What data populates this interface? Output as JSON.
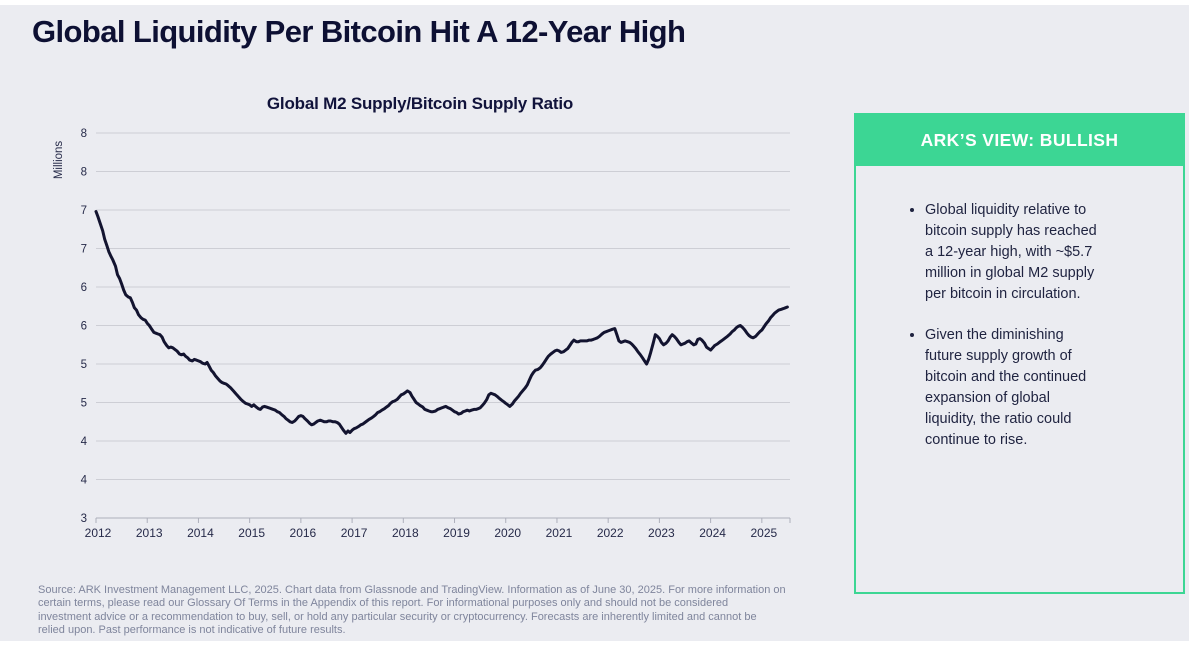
{
  "page": {
    "title": "Global Liquidity Per Bitcoin Hit A 12-Year High",
    "background_color": "#EBECF1",
    "accent_green": "#3CD694",
    "navy": "#0D1033"
  },
  "ark_view": {
    "header": "ARK’S VIEW: BULLISH",
    "bullets": [
      "Global liquidity relative to\nbitcoin supply has reached\na 12-year high, with ~$5.7\nmillion in global M2 supply\nper bitcoin in circulation.",
      "Given the diminishing\nfuture supply growth of\nbitcoin and the continued\nexpansion of global\nliquidity, the ratio could\ncontinue to rise."
    ]
  },
  "footer": {
    "lines": [
      "Source: ARK Investment Management LLC, 2025. Chart data from Glassnode and TradingView. Information as of June 30, 2025. For more information on",
      "certain terms, please read our Glossary Of Terms in the Appendix of this report. For informational purposes only and should not be considered",
      "investment advice or a recommendation to buy, sell, or hold any particular security or cryptocurrency. Forecasts are inherently limited and cannot be",
      "relied upon. Past performance is not indicative of future results."
    ]
  },
  "chart_data": {
    "type": "line",
    "title": "Global M2 Supply/Bitcoin Supply Ratio",
    "xlabel": "",
    "ylabel": "Millions",
    "grid": true,
    "legend_position": "none",
    "line_color": "#131430",
    "grid_color": "#CDCED5",
    "axis_color": "#ADAFBB",
    "tick_label_color": "#262A49",
    "ylim": [
      3,
      8
    ],
    "xlim": [
      2012,
      2025.55
    ],
    "y_tick_values": [
      8,
      7.5,
      7,
      6.5,
      6,
      5.5,
      5,
      4.5,
      4,
      3.5,
      3
    ],
    "y_tick_labels": [
      "8",
      "8",
      "7",
      "7",
      "6",
      "6",
      "5",
      "5",
      "4",
      "4",
      "3"
    ],
    "x_tick_values": [
      2012,
      2013,
      2014,
      2015,
      2016,
      2017,
      2018,
      2019,
      2020,
      2021,
      2022,
      2023,
      2024,
      2025
    ],
    "x_tick_labels": [
      "2012",
      "2013",
      "2014",
      "2015",
      "2016",
      "2017",
      "2018",
      "2019",
      "2020",
      "2021",
      "2022",
      "2023",
      "2024",
      "2025"
    ],
    "points": [
      [
        2012.0,
        6.98
      ],
      [
        2012.04,
        6.91
      ],
      [
        2012.08,
        6.83
      ],
      [
        2012.13,
        6.73
      ],
      [
        2012.17,
        6.62
      ],
      [
        2012.21,
        6.54
      ],
      [
        2012.25,
        6.46
      ],
      [
        2012.29,
        6.4
      ],
      [
        2012.33,
        6.35
      ],
      [
        2012.38,
        6.27
      ],
      [
        2012.42,
        6.16
      ],
      [
        2012.46,
        6.11
      ],
      [
        2012.5,
        6.04
      ],
      [
        2012.54,
        5.96
      ],
      [
        2012.58,
        5.9
      ],
      [
        2012.63,
        5.87
      ],
      [
        2012.67,
        5.86
      ],
      [
        2012.71,
        5.8
      ],
      [
        2012.75,
        5.73
      ],
      [
        2012.79,
        5.7
      ],
      [
        2012.83,
        5.64
      ],
      [
        2012.88,
        5.6
      ],
      [
        2012.92,
        5.58
      ],
      [
        2012.96,
        5.57
      ],
      [
        2013.0,
        5.53
      ],
      [
        2013.04,
        5.5
      ],
      [
        2013.08,
        5.46
      ],
      [
        2013.13,
        5.41
      ],
      [
        2013.17,
        5.4
      ],
      [
        2013.21,
        5.39
      ],
      [
        2013.25,
        5.38
      ],
      [
        2013.29,
        5.35
      ],
      [
        2013.33,
        5.29
      ],
      [
        2013.38,
        5.24
      ],
      [
        2013.42,
        5.21
      ],
      [
        2013.46,
        5.22
      ],
      [
        2013.5,
        5.21
      ],
      [
        2013.54,
        5.19
      ],
      [
        2013.58,
        5.17
      ],
      [
        2013.63,
        5.13
      ],
      [
        2013.67,
        5.12
      ],
      [
        2013.71,
        5.13
      ],
      [
        2013.75,
        5.1
      ],
      [
        2013.79,
        5.08
      ],
      [
        2013.83,
        5.05
      ],
      [
        2013.88,
        5.04
      ],
      [
        2013.92,
        5.06
      ],
      [
        2013.96,
        5.05
      ],
      [
        2014.0,
        5.04
      ],
      [
        2014.04,
        5.03
      ],
      [
        2014.08,
        5.01
      ],
      [
        2014.13,
        5.0
      ],
      [
        2014.17,
        5.02
      ],
      [
        2014.21,
        4.97
      ],
      [
        2014.25,
        4.92
      ],
      [
        2014.29,
        4.89
      ],
      [
        2014.33,
        4.85
      ],
      [
        2014.38,
        4.81
      ],
      [
        2014.42,
        4.78
      ],
      [
        2014.46,
        4.76
      ],
      [
        2014.5,
        4.75
      ],
      [
        2014.54,
        4.74
      ],
      [
        2014.58,
        4.72
      ],
      [
        2014.63,
        4.69
      ],
      [
        2014.67,
        4.66
      ],
      [
        2014.71,
        4.63
      ],
      [
        2014.75,
        4.6
      ],
      [
        2014.79,
        4.57
      ],
      [
        2014.83,
        4.54
      ],
      [
        2014.88,
        4.51
      ],
      [
        2014.92,
        4.49
      ],
      [
        2014.96,
        4.48
      ],
      [
        2015.0,
        4.47
      ],
      [
        2015.04,
        4.45
      ],
      [
        2015.08,
        4.47
      ],
      [
        2015.13,
        4.44
      ],
      [
        2015.17,
        4.42
      ],
      [
        2015.21,
        4.41
      ],
      [
        2015.25,
        4.44
      ],
      [
        2015.29,
        4.45
      ],
      [
        2015.33,
        4.44
      ],
      [
        2015.38,
        4.43
      ],
      [
        2015.42,
        4.42
      ],
      [
        2015.46,
        4.41
      ],
      [
        2015.5,
        4.4
      ],
      [
        2015.54,
        4.38
      ],
      [
        2015.58,
        4.37
      ],
      [
        2015.63,
        4.34
      ],
      [
        2015.67,
        4.32
      ],
      [
        2015.71,
        4.29
      ],
      [
        2015.75,
        4.27
      ],
      [
        2015.79,
        4.25
      ],
      [
        2015.83,
        4.24
      ],
      [
        2015.88,
        4.26
      ],
      [
        2015.92,
        4.29
      ],
      [
        2015.96,
        4.32
      ],
      [
        2016.0,
        4.33
      ],
      [
        2016.04,
        4.32
      ],
      [
        2016.08,
        4.29
      ],
      [
        2016.13,
        4.26
      ],
      [
        2016.17,
        4.23
      ],
      [
        2016.21,
        4.21
      ],
      [
        2016.25,
        4.22
      ],
      [
        2016.29,
        4.24
      ],
      [
        2016.33,
        4.26
      ],
      [
        2016.38,
        4.27
      ],
      [
        2016.42,
        4.26
      ],
      [
        2016.46,
        4.25
      ],
      [
        2016.5,
        4.25
      ],
      [
        2016.54,
        4.26
      ],
      [
        2016.58,
        4.26
      ],
      [
        2016.63,
        4.25
      ],
      [
        2016.67,
        4.25
      ],
      [
        2016.71,
        4.24
      ],
      [
        2016.75,
        4.22
      ],
      [
        2016.79,
        4.18
      ],
      [
        2016.83,
        4.14
      ],
      [
        2016.88,
        4.1
      ],
      [
        2016.92,
        4.13
      ],
      [
        2016.96,
        4.11
      ],
      [
        2017.0,
        4.14
      ],
      [
        2017.04,
        4.16
      ],
      [
        2017.08,
        4.17
      ],
      [
        2017.13,
        4.19
      ],
      [
        2017.17,
        4.21
      ],
      [
        2017.21,
        4.22
      ],
      [
        2017.25,
        4.24
      ],
      [
        2017.29,
        4.26
      ],
      [
        2017.33,
        4.28
      ],
      [
        2017.38,
        4.3
      ],
      [
        2017.42,
        4.32
      ],
      [
        2017.46,
        4.34
      ],
      [
        2017.5,
        4.37
      ],
      [
        2017.54,
        4.38
      ],
      [
        2017.58,
        4.4
      ],
      [
        2017.63,
        4.42
      ],
      [
        2017.67,
        4.44
      ],
      [
        2017.71,
        4.46
      ],
      [
        2017.75,
        4.49
      ],
      [
        2017.79,
        4.51
      ],
      [
        2017.83,
        4.52
      ],
      [
        2017.88,
        4.54
      ],
      [
        2017.92,
        4.57
      ],
      [
        2017.96,
        4.6
      ],
      [
        2018.0,
        4.61
      ],
      [
        2018.04,
        4.63
      ],
      [
        2018.08,
        4.65
      ],
      [
        2018.13,
        4.63
      ],
      [
        2018.17,
        4.58
      ],
      [
        2018.21,
        4.54
      ],
      [
        2018.25,
        4.5
      ],
      [
        2018.29,
        4.48
      ],
      [
        2018.33,
        4.46
      ],
      [
        2018.38,
        4.44
      ],
      [
        2018.42,
        4.41
      ],
      [
        2018.46,
        4.4
      ],
      [
        2018.5,
        4.39
      ],
      [
        2018.54,
        4.38
      ],
      [
        2018.58,
        4.38
      ],
      [
        2018.63,
        4.39
      ],
      [
        2018.67,
        4.41
      ],
      [
        2018.71,
        4.42
      ],
      [
        2018.75,
        4.43
      ],
      [
        2018.79,
        4.44
      ],
      [
        2018.83,
        4.45
      ],
      [
        2018.88,
        4.43
      ],
      [
        2018.92,
        4.42
      ],
      [
        2018.96,
        4.4
      ],
      [
        2019.0,
        4.38
      ],
      [
        2019.04,
        4.37
      ],
      [
        2019.08,
        4.35
      ],
      [
        2019.13,
        4.36
      ],
      [
        2019.17,
        4.38
      ],
      [
        2019.21,
        4.39
      ],
      [
        2019.25,
        4.4
      ],
      [
        2019.29,
        4.39
      ],
      [
        2019.33,
        4.4
      ],
      [
        2019.38,
        4.41
      ],
      [
        2019.42,
        4.41
      ],
      [
        2019.46,
        4.42
      ],
      [
        2019.5,
        4.43
      ],
      [
        2019.54,
        4.46
      ],
      [
        2019.58,
        4.49
      ],
      [
        2019.63,
        4.54
      ],
      [
        2019.67,
        4.6
      ],
      [
        2019.71,
        4.62
      ],
      [
        2019.75,
        4.61
      ],
      [
        2019.79,
        4.6
      ],
      [
        2019.83,
        4.58
      ],
      [
        2019.88,
        4.55
      ],
      [
        2019.92,
        4.53
      ],
      [
        2019.96,
        4.51
      ],
      [
        2020.0,
        4.49
      ],
      [
        2020.04,
        4.47
      ],
      [
        2020.08,
        4.45
      ],
      [
        2020.13,
        4.48
      ],
      [
        2020.17,
        4.52
      ],
      [
        2020.21,
        4.55
      ],
      [
        2020.25,
        4.58
      ],
      [
        2020.29,
        4.62
      ],
      [
        2020.33,
        4.65
      ],
      [
        2020.38,
        4.69
      ],
      [
        2020.42,
        4.73
      ],
      [
        2020.46,
        4.79
      ],
      [
        2020.5,
        4.85
      ],
      [
        2020.54,
        4.89
      ],
      [
        2020.58,
        4.92
      ],
      [
        2020.63,
        4.93
      ],
      [
        2020.67,
        4.95
      ],
      [
        2020.71,
        4.98
      ],
      [
        2020.75,
        5.02
      ],
      [
        2020.79,
        5.06
      ],
      [
        2020.83,
        5.1
      ],
      [
        2020.88,
        5.13
      ],
      [
        2020.92,
        5.15
      ],
      [
        2020.96,
        5.17
      ],
      [
        2021.0,
        5.18
      ],
      [
        2021.04,
        5.17
      ],
      [
        2021.08,
        5.15
      ],
      [
        2021.13,
        5.16
      ],
      [
        2021.17,
        5.18
      ],
      [
        2021.21,
        5.2
      ],
      [
        2021.25,
        5.24
      ],
      [
        2021.29,
        5.28
      ],
      [
        2021.33,
        5.31
      ],
      [
        2021.38,
        5.29
      ],
      [
        2021.42,
        5.29
      ],
      [
        2021.46,
        5.3
      ],
      [
        2021.5,
        5.3
      ],
      [
        2021.54,
        5.3
      ],
      [
        2021.58,
        5.3
      ],
      [
        2021.63,
        5.31
      ],
      [
        2021.67,
        5.31
      ],
      [
        2021.71,
        5.32
      ],
      [
        2021.75,
        5.33
      ],
      [
        2021.79,
        5.34
      ],
      [
        2021.83,
        5.36
      ],
      [
        2021.88,
        5.39
      ],
      [
        2021.92,
        5.41
      ],
      [
        2021.96,
        5.42
      ],
      [
        2022.0,
        5.43
      ],
      [
        2022.04,
        5.44
      ],
      [
        2022.08,
        5.45
      ],
      [
        2022.13,
        5.46
      ],
      [
        2022.17,
        5.38
      ],
      [
        2022.21,
        5.3
      ],
      [
        2022.25,
        5.28
      ],
      [
        2022.29,
        5.29
      ],
      [
        2022.33,
        5.3
      ],
      [
        2022.38,
        5.29
      ],
      [
        2022.42,
        5.28
      ],
      [
        2022.46,
        5.26
      ],
      [
        2022.5,
        5.23
      ],
      [
        2022.54,
        5.2
      ],
      [
        2022.58,
        5.16
      ],
      [
        2022.63,
        5.12
      ],
      [
        2022.67,
        5.08
      ],
      [
        2022.71,
        5.04
      ],
      [
        2022.75,
        5.0
      ],
      [
        2022.79,
        5.06
      ],
      [
        2022.83,
        5.15
      ],
      [
        2022.88,
        5.27
      ],
      [
        2022.92,
        5.38
      ],
      [
        2022.96,
        5.36
      ],
      [
        2023.0,
        5.33
      ],
      [
        2023.04,
        5.28
      ],
      [
        2023.08,
        5.25
      ],
      [
        2023.13,
        5.27
      ],
      [
        2023.17,
        5.3
      ],
      [
        2023.21,
        5.35
      ],
      [
        2023.25,
        5.38
      ],
      [
        2023.29,
        5.36
      ],
      [
        2023.33,
        5.33
      ],
      [
        2023.38,
        5.28
      ],
      [
        2023.42,
        5.25
      ],
      [
        2023.46,
        5.26
      ],
      [
        2023.5,
        5.27
      ],
      [
        2023.54,
        5.29
      ],
      [
        2023.58,
        5.3
      ],
      [
        2023.63,
        5.27
      ],
      [
        2023.67,
        5.25
      ],
      [
        2023.71,
        5.26
      ],
      [
        2023.75,
        5.32
      ],
      [
        2023.79,
        5.33
      ],
      [
        2023.83,
        5.31
      ],
      [
        2023.88,
        5.27
      ],
      [
        2023.92,
        5.22
      ],
      [
        2023.96,
        5.2
      ],
      [
        2024.0,
        5.18
      ],
      [
        2024.04,
        5.21
      ],
      [
        2024.08,
        5.24
      ],
      [
        2024.13,
        5.26
      ],
      [
        2024.17,
        5.28
      ],
      [
        2024.21,
        5.3
      ],
      [
        2024.25,
        5.32
      ],
      [
        2024.29,
        5.34
      ],
      [
        2024.33,
        5.36
      ],
      [
        2024.38,
        5.39
      ],
      [
        2024.42,
        5.42
      ],
      [
        2024.46,
        5.44
      ],
      [
        2024.5,
        5.47
      ],
      [
        2024.54,
        5.49
      ],
      [
        2024.58,
        5.5
      ],
      [
        2024.63,
        5.47
      ],
      [
        2024.67,
        5.44
      ],
      [
        2024.71,
        5.4
      ],
      [
        2024.75,
        5.37
      ],
      [
        2024.79,
        5.35
      ],
      [
        2024.83,
        5.34
      ],
      [
        2024.88,
        5.36
      ],
      [
        2024.92,
        5.39
      ],
      [
        2024.96,
        5.42
      ],
      [
        2025.0,
        5.44
      ],
      [
        2025.04,
        5.48
      ],
      [
        2025.08,
        5.52
      ],
      [
        2025.13,
        5.56
      ],
      [
        2025.17,
        5.6
      ],
      [
        2025.21,
        5.63
      ],
      [
        2025.25,
        5.66
      ],
      [
        2025.29,
        5.68
      ],
      [
        2025.33,
        5.7
      ],
      [
        2025.38,
        5.71
      ],
      [
        2025.42,
        5.72
      ],
      [
        2025.46,
        5.73
      ],
      [
        2025.5,
        5.74
      ]
    ]
  }
}
